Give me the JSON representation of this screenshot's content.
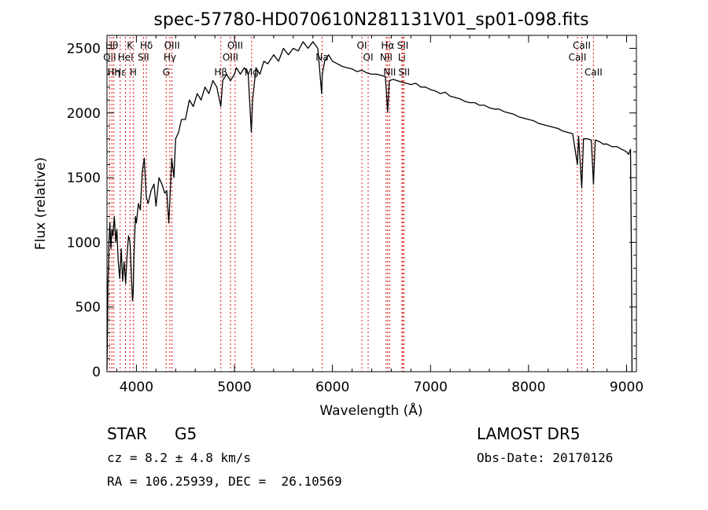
{
  "chart_data": {
    "type": "line",
    "title": "spec-57780-HD070610N281131V01_sp01-098.fits",
    "xlabel": "Wavelength (Å)",
    "ylabel": "Flux (relative)",
    "xlim": [
      3700,
      9100
    ],
    "ylim": [
      0,
      2600
    ],
    "x_ticks": [
      4000,
      5000,
      6000,
      7000,
      8000,
      9000
    ],
    "y_ticks": [
      0,
      500,
      1000,
      1500,
      2000,
      2500
    ],
    "grid": false,
    "series": [
      {
        "points": [
          [
            3700,
            20
          ],
          [
            3705,
            300
          ],
          [
            3710,
            650
          ],
          [
            3720,
            1000
          ],
          [
            3730,
            1150
          ],
          [
            3740,
            950
          ],
          [
            3750,
            1100
          ],
          [
            3760,
            1050
          ],
          [
            3775,
            1200
          ],
          [
            3790,
            1000
          ],
          [
            3800,
            1100
          ],
          [
            3815,
            850
          ],
          [
            3830,
            720
          ],
          [
            3845,
            950
          ],
          [
            3860,
            700
          ],
          [
            3875,
            850
          ],
          [
            3890,
            680
          ],
          [
            3905,
            900
          ],
          [
            3920,
            1050
          ],
          [
            3935,
            1000
          ],
          [
            3950,
            720
          ],
          [
            3960,
            550
          ],
          [
            3968,
            620
          ],
          [
            3975,
            900
          ],
          [
            3990,
            1200
          ],
          [
            4000,
            1150
          ],
          [
            4020,
            1300
          ],
          [
            4040,
            1250
          ],
          [
            4060,
            1550
          ],
          [
            4080,
            1650
          ],
          [
            4101,
            1350
          ],
          [
            4120,
            1300
          ],
          [
            4150,
            1400
          ],
          [
            4180,
            1450
          ],
          [
            4200,
            1280
          ],
          [
            4230,
            1500
          ],
          [
            4260,
            1450
          ],
          [
            4290,
            1380
          ],
          [
            4310,
            1400
          ],
          [
            4330,
            1150
          ],
          [
            4340,
            1300
          ],
          [
            4360,
            1650
          ],
          [
            4383,
            1500
          ],
          [
            4400,
            1800
          ],
          [
            4430,
            1850
          ],
          [
            4460,
            1950
          ],
          [
            4500,
            1950
          ],
          [
            4540,
            2100
          ],
          [
            4580,
            2050
          ],
          [
            4620,
            2150
          ],
          [
            4660,
            2100
          ],
          [
            4700,
            2200
          ],
          [
            4740,
            2150
          ],
          [
            4780,
            2250
          ],
          [
            4820,
            2200
          ],
          [
            4861,
            2050
          ],
          [
            4880,
            2250
          ],
          [
            4920,
            2300
          ],
          [
            4960,
            2250
          ],
          [
            5000,
            2300
          ],
          [
            5020,
            2350
          ],
          [
            5060,
            2300
          ],
          [
            5100,
            2350
          ],
          [
            5140,
            2300
          ],
          [
            5172,
            1850
          ],
          [
            5185,
            2100
          ],
          [
            5220,
            2350
          ],
          [
            5260,
            2300
          ],
          [
            5300,
            2400
          ],
          [
            5340,
            2380
          ],
          [
            5400,
            2450
          ],
          [
            5450,
            2400
          ],
          [
            5500,
            2500
          ],
          [
            5550,
            2450
          ],
          [
            5600,
            2500
          ],
          [
            5650,
            2480
          ],
          [
            5700,
            2550
          ],
          [
            5750,
            2500
          ],
          [
            5800,
            2550
          ],
          [
            5850,
            2500
          ],
          [
            5890,
            2150
          ],
          [
            5896,
            2300
          ],
          [
            5920,
            2400
          ],
          [
            5960,
            2450
          ],
          [
            6000,
            2400
          ],
          [
            6050,
            2380
          ],
          [
            6100,
            2360
          ],
          [
            6150,
            2350
          ],
          [
            6200,
            2340
          ],
          [
            6250,
            2320
          ],
          [
            6300,
            2330
          ],
          [
            6350,
            2310
          ],
          [
            6400,
            2300
          ],
          [
            6450,
            2300
          ],
          [
            6500,
            2290
          ],
          [
            6540,
            2280
          ],
          [
            6563,
            2010
          ],
          [
            6580,
            2250
          ],
          [
            6620,
            2260
          ],
          [
            6660,
            2250
          ],
          [
            6700,
            2240
          ],
          [
            6750,
            2230
          ],
          [
            6800,
            2220
          ],
          [
            6850,
            2230
          ],
          [
            6900,
            2200
          ],
          [
            6950,
            2200
          ],
          [
            7000,
            2180
          ],
          [
            7050,
            2170
          ],
          [
            7100,
            2150
          ],
          [
            7150,
            2160
          ],
          [
            7200,
            2130
          ],
          [
            7250,
            2120
          ],
          [
            7300,
            2110
          ],
          [
            7350,
            2090
          ],
          [
            7400,
            2080
          ],
          [
            7450,
            2080
          ],
          [
            7500,
            2060
          ],
          [
            7550,
            2060
          ],
          [
            7600,
            2040
          ],
          [
            7650,
            2030
          ],
          [
            7700,
            2030
          ],
          [
            7750,
            2010
          ],
          [
            7800,
            2000
          ],
          [
            7850,
            1990
          ],
          [
            7900,
            1970
          ],
          [
            7950,
            1960
          ],
          [
            8000,
            1950
          ],
          [
            8050,
            1940
          ],
          [
            8100,
            1920
          ],
          [
            8150,
            1910
          ],
          [
            8200,
            1900
          ],
          [
            8250,
            1890
          ],
          [
            8300,
            1880
          ],
          [
            8350,
            1860
          ],
          [
            8400,
            1850
          ],
          [
            8450,
            1840
          ],
          [
            8498,
            1600
          ],
          [
            8510,
            1820
          ],
          [
            8542,
            1420
          ],
          [
            8560,
            1800
          ],
          [
            8600,
            1800
          ],
          [
            8640,
            1790
          ],
          [
            8662,
            1450
          ],
          [
            8680,
            1790
          ],
          [
            8720,
            1780
          ],
          [
            8760,
            1760
          ],
          [
            8800,
            1760
          ],
          [
            8850,
            1740
          ],
          [
            8900,
            1740
          ],
          [
            8950,
            1720
          ],
          [
            9000,
            1700
          ],
          [
            9020,
            1680
          ],
          [
            9040,
            1720
          ],
          [
            9050,
            800
          ],
          [
            9055,
            0
          ]
        ]
      }
    ],
    "lines": [
      {
        "w": 3727,
        "label": "OII",
        "row": 2
      },
      {
        "w": 3750,
        "label": "Hθ",
        "row": 1
      },
      {
        "w": 3770,
        "label": "Hη",
        "row": 3
      },
      {
        "w": 3835,
        "label": "Hε",
        "row": 3
      },
      {
        "w": 3889,
        "label": "HeI",
        "row": 2
      },
      {
        "w": 3934,
        "label": "K",
        "row": 1
      },
      {
        "w": 3968,
        "label": "H",
        "row": 3
      },
      {
        "w": 4072,
        "label": "SII",
        "row": 2
      },
      {
        "w": 4102,
        "label": "Hδ",
        "row": 1
      },
      {
        "w": 4304,
        "label": "G",
        "row": 3
      },
      {
        "w": 4341,
        "label": "Hγ",
        "row": 2
      },
      {
        "w": 4363,
        "label": "OIII",
        "row": 1
      },
      {
        "w": 4861,
        "label": "Hβ",
        "row": 3
      },
      {
        "w": 4959,
        "label": "OIII",
        "row": 2
      },
      {
        "w": 5007,
        "label": "OIII",
        "row": 1
      },
      {
        "w": 5175,
        "label": "Mg",
        "row": 3
      },
      {
        "w": 5894,
        "label": "Na",
        "row": 2
      },
      {
        "w": 6300,
        "label": "OI",
        "row": 1
      },
      {
        "w": 6364,
        "label": "OI",
        "row": 2
      },
      {
        "w": 6548,
        "label": "NII",
        "row": 2
      },
      {
        "w": 6563,
        "label": "Hα",
        "row": 1
      },
      {
        "w": 6583,
        "label": "NII",
        "row": 3
      },
      {
        "w": 6708,
        "label": "Li",
        "row": 2
      },
      {
        "w": 6717,
        "label": "SII",
        "row": 1
      },
      {
        "w": 6731,
        "label": "SII",
        "row": 3
      },
      {
        "w": 8498,
        "label": "CaII",
        "row": 2
      },
      {
        "w": 8542,
        "label": "CaII",
        "row": 1
      },
      {
        "w": 8662,
        "label": "CaII",
        "row": 3
      }
    ]
  },
  "info": {
    "class_label": "STAR",
    "subclass": "G5",
    "survey": "LAMOST DR5",
    "cz": "cz = 8.2 ± 4.8 km/s",
    "obs_date": "Obs-Date: 20170126",
    "coords": "RA = 106.25939, DEC =  26.10569"
  }
}
